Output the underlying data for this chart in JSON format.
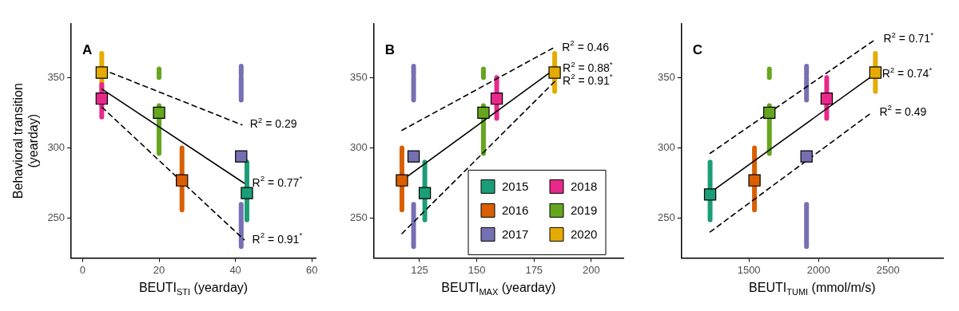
{
  "chart_data": [
    {
      "type": "scatter",
      "xlabel": "BEUTI$_{STI}$ (yearday)",
      "ylabel": "Behavioral transition (yearday)",
      "xlim": [
        -3,
        61
      ],
      "xticks": [
        0,
        20,
        40,
        60
      ],
      "ylim": [
        222,
        388
      ],
      "yticks": [
        250,
        300,
        350
      ],
      "grid": false,
      "legend": false,
      "marker": "square",
      "annotations": [
        "A",
        "R$^{2}$ = 0.29",
        "R$^{2}$ = 0.77$^{*}$",
        "R$^{2}$ = 0.91$^{*}$"
      ],
      "series": [
        {
          "type": "line",
          "marker": "none",
          "color": "#e6ab02",
          "x": [
            5,
            5
          ],
          "values": [
            341,
            367
          ]
        },
        {
          "type": "line",
          "marker": "none",
          "color": "#e7298a",
          "x": [
            5,
            5
          ],
          "values": [
            322,
            345
          ]
        },
        {
          "type": "line",
          "marker": "none",
          "color": "#66a61e",
          "x": [
            20,
            20
          ],
          "values": [
            350,
            356
          ]
        },
        {
          "type": "line",
          "marker": "none",
          "color": "#66a61e",
          "x": [
            20,
            20
          ],
          "values": [
            296,
            330
          ]
        },
        {
          "type": "line",
          "marker": "none",
          "color": "#d95f02",
          "x": [
            26,
            26
          ],
          "values": [
            256,
            300
          ]
        },
        {
          "type": "line",
          "marker": "none",
          "color": "#7570b3",
          "x": [
            41.5,
            41.5
          ],
          "values": [
            352,
            358
          ]
        },
        {
          "type": "line",
          "marker": "none",
          "color": "#7570b3",
          "x": [
            41.5,
            41.5
          ],
          "values": [
            334,
            350
          ]
        },
        {
          "type": "line",
          "marker": "none",
          "color": "#7570b3",
          "x": [
            41.5,
            41.5
          ],
          "values": [
            230,
            260
          ]
        },
        {
          "type": "line",
          "marker": "none",
          "color": "#1b9e77",
          "x": [
            43,
            43
          ],
          "values": [
            249,
            290
          ]
        },
        {
          "type": "line",
          "marker": "none",
          "color": "#000000",
          "line_style": "dashed",
          "x": [
            5.1,
            41.7
          ],
          "values": [
            355.8,
            316.4
          ]
        },
        {
          "type": "line",
          "marker": "none",
          "color": "#000000",
          "line_style": "solid",
          "x": [
            5.1,
            42.3
          ],
          "values": [
            341.7,
            275
          ]
        },
        {
          "type": "line",
          "marker": "none",
          "color": "#000000",
          "line_style": "dashed",
          "x": [
            5.1,
            42.3
          ],
          "values": [
            328.8,
            234.8
          ]
        },
        {
          "color": "#1b9e77",
          "x": [
            43
          ],
          "values": [
            268
          ]
        },
        {
          "color": "#d95f02",
          "x": [
            26
          ],
          "values": [
            277
          ]
        },
        {
          "color": "#7570b3",
          "x": [
            41.5
          ],
          "values": [
            294
          ]
        },
        {
          "color": "#e7298a",
          "x": [
            5
          ],
          "values": [
            335
          ]
        },
        {
          "color": "#66a61e",
          "x": [
            20
          ],
          "values": [
            325
          ]
        },
        {
          "color": "#e6ab02",
          "x": [
            5
          ],
          "values": [
            353.5
          ]
        }
      ]
    },
    {
      "type": "scatter",
      "xlabel": "BEUTI$_{MAX}$ (yearday)",
      "xlim": [
        105,
        214
      ],
      "xticks": [
        125,
        150,
        175,
        200
      ],
      "ylim": [
        222,
        388
      ],
      "yticks": [
        250,
        300,
        350
      ],
      "grid": false,
      "legend": "bottom right",
      "marker": "square",
      "annotations": [
        "B",
        "R$^{2}$ = 0.46",
        "R$^{2}$ = 0.88$^{*}$",
        "R$^{2}$ = 0.91$^{*}$"
      ],
      "series": [
        {
          "type": "line",
          "marker": "none",
          "color": "#d95f02",
          "x": [
            117.3,
            117.3
          ],
          "values": [
            256,
            300
          ]
        },
        {
          "type": "line",
          "marker": "none",
          "color": "#7570b3",
          "x": [
            122.4,
            122.4
          ],
          "values": [
            352,
            358
          ]
        },
        {
          "type": "line",
          "marker": "none",
          "color": "#7570b3",
          "x": [
            122.4,
            122.4
          ],
          "values": [
            334,
            350
          ]
        },
        {
          "type": "line",
          "marker": "none",
          "color": "#7570b3",
          "x": [
            122.4,
            122.4
          ],
          "values": [
            230,
            260
          ]
        },
        {
          "type": "line",
          "marker": "none",
          "color": "#1b9e77",
          "x": [
            127.3,
            127.3
          ],
          "values": [
            249,
            290
          ]
        },
        {
          "type": "line",
          "marker": "none",
          "color": "#66a61e",
          "x": [
            152.9,
            152.9
          ],
          "values": [
            350,
            356
          ]
        },
        {
          "type": "line",
          "marker": "none",
          "color": "#66a61e",
          "x": [
            152.9,
            152.9
          ],
          "values": [
            296,
            330
          ]
        },
        {
          "type": "line",
          "marker": "none",
          "color": "#e7298a",
          "x": [
            158.7,
            158.7
          ],
          "values": [
            321,
            350
          ]
        },
        {
          "type": "line",
          "marker": "none",
          "color": "#e6ab02",
          "x": [
            184,
            184
          ],
          "values": [
            340,
            367
          ]
        },
        {
          "type": "line",
          "marker": "none",
          "color": "#000000",
          "line_style": "dashed",
          "x": [
            117.3,
            183.7
          ],
          "values": [
            312.5,
            371.2
          ]
        },
        {
          "type": "line",
          "marker": "none",
          "color": "#000000",
          "line_style": "solid",
          "x": [
            117.3,
            184
          ],
          "values": [
            277,
            356
          ]
        },
        {
          "type": "line",
          "marker": "none",
          "color": "#000000",
          "line_style": "dashed",
          "x": [
            117.3,
            184
          ],
          "values": [
            239.2,
            347.1
          ]
        },
        {
          "name": "2015",
          "color": "#1b9e77",
          "x": [
            127.3
          ],
          "values": [
            268
          ]
        },
        {
          "name": "2016",
          "color": "#d95f02",
          "x": [
            117.3
          ],
          "values": [
            277
          ]
        },
        {
          "name": "2017",
          "color": "#7570b3",
          "x": [
            122.4
          ],
          "values": [
            294
          ]
        },
        {
          "name": "2018",
          "color": "#e7298a",
          "x": [
            158.7
          ],
          "values": [
            335
          ]
        },
        {
          "name": "2019",
          "color": "#66a61e",
          "x": [
            152.9
          ],
          "values": [
            325
          ]
        },
        {
          "name": "2020",
          "color": "#e6ab02",
          "x": [
            184
          ],
          "values": [
            353.5
          ]
        }
      ]
    },
    {
      "type": "scatter",
      "xlabel": "BEUTI$_{TUMI}$ (mmol/m/s)",
      "xlim": [
        1015,
        2895
      ],
      "xticks": [
        1500,
        2000,
        2500
      ],
      "ylim": [
        222,
        388
      ],
      "yticks": [
        250,
        300,
        350
      ],
      "grid": false,
      "legend": false,
      "marker": "square",
      "annotations": [
        "C",
        "R$^{2}$ = 0.71$^{*}$",
        "R$^{2}$ = 0.74$^{*}$",
        "R$^{2}$ = 0.49"
      ],
      "series": [
        {
          "type": "line",
          "marker": "none",
          "color": "#1b9e77",
          "x": [
            1221,
            1221
          ],
          "values": [
            249,
            290
          ]
        },
        {
          "type": "line",
          "marker": "none",
          "color": "#d95f02",
          "x": [
            1540,
            1540
          ],
          "values": [
            256,
            300
          ]
        },
        {
          "type": "line",
          "marker": "none",
          "color": "#66a61e",
          "x": [
            1647,
            1647
          ],
          "values": [
            350,
            356
          ]
        },
        {
          "type": "line",
          "marker": "none",
          "color": "#66a61e",
          "x": [
            1647,
            1647
          ],
          "values": [
            296,
            330
          ]
        },
        {
          "type": "line",
          "marker": "none",
          "color": "#7570b3",
          "x": [
            1914,
            1914
          ],
          "values": [
            352,
            358
          ]
        },
        {
          "type": "line",
          "marker": "none",
          "color": "#7570b3",
          "x": [
            1914,
            1914
          ],
          "values": [
            334,
            350
          ]
        },
        {
          "type": "line",
          "marker": "none",
          "color": "#7570b3",
          "x": [
            1914,
            1914
          ],
          "values": [
            230,
            260
          ]
        },
        {
          "type": "line",
          "marker": "none",
          "color": "#e7298a",
          "x": [
            2059,
            2059
          ],
          "values": [
            321,
            350
          ]
        },
        {
          "type": "line",
          "marker": "none",
          "color": "#e6ab02",
          "x": [
            2409,
            2409
          ],
          "values": [
            340,
            367
          ]
        },
        {
          "type": "line",
          "marker": "none",
          "color": "#000000",
          "line_style": "dashed",
          "x": [
            1221,
            2409
          ],
          "values": [
            296.2,
            377
          ]
        },
        {
          "type": "line",
          "marker": "none",
          "color": "#000000",
          "line_style": "solid",
          "x": [
            1221,
            2399
          ],
          "values": [
            268.3,
            352
          ]
        },
        {
          "type": "line",
          "marker": "none",
          "color": "#000000",
          "line_style": "dashed",
          "x": [
            1221,
            2381
          ],
          "values": [
            240.4,
            325
          ]
        },
        {
          "color": "#1b9e77",
          "x": [
            1221
          ],
          "values": [
            267
          ]
        },
        {
          "color": "#d95f02",
          "x": [
            1540
          ],
          "values": [
            277
          ]
        },
        {
          "color": "#7570b3",
          "x": [
            1914
          ],
          "values": [
            294
          ]
        },
        {
          "color": "#e7298a",
          "x": [
            2059
          ],
          "values": [
            335
          ]
        },
        {
          "color": "#66a61e",
          "x": [
            1647
          ],
          "values": [
            325
          ]
        },
        {
          "color": "#e6ab02",
          "x": [
            2409
          ],
          "values": [
            353.5
          ]
        }
      ]
    }
  ]
}
